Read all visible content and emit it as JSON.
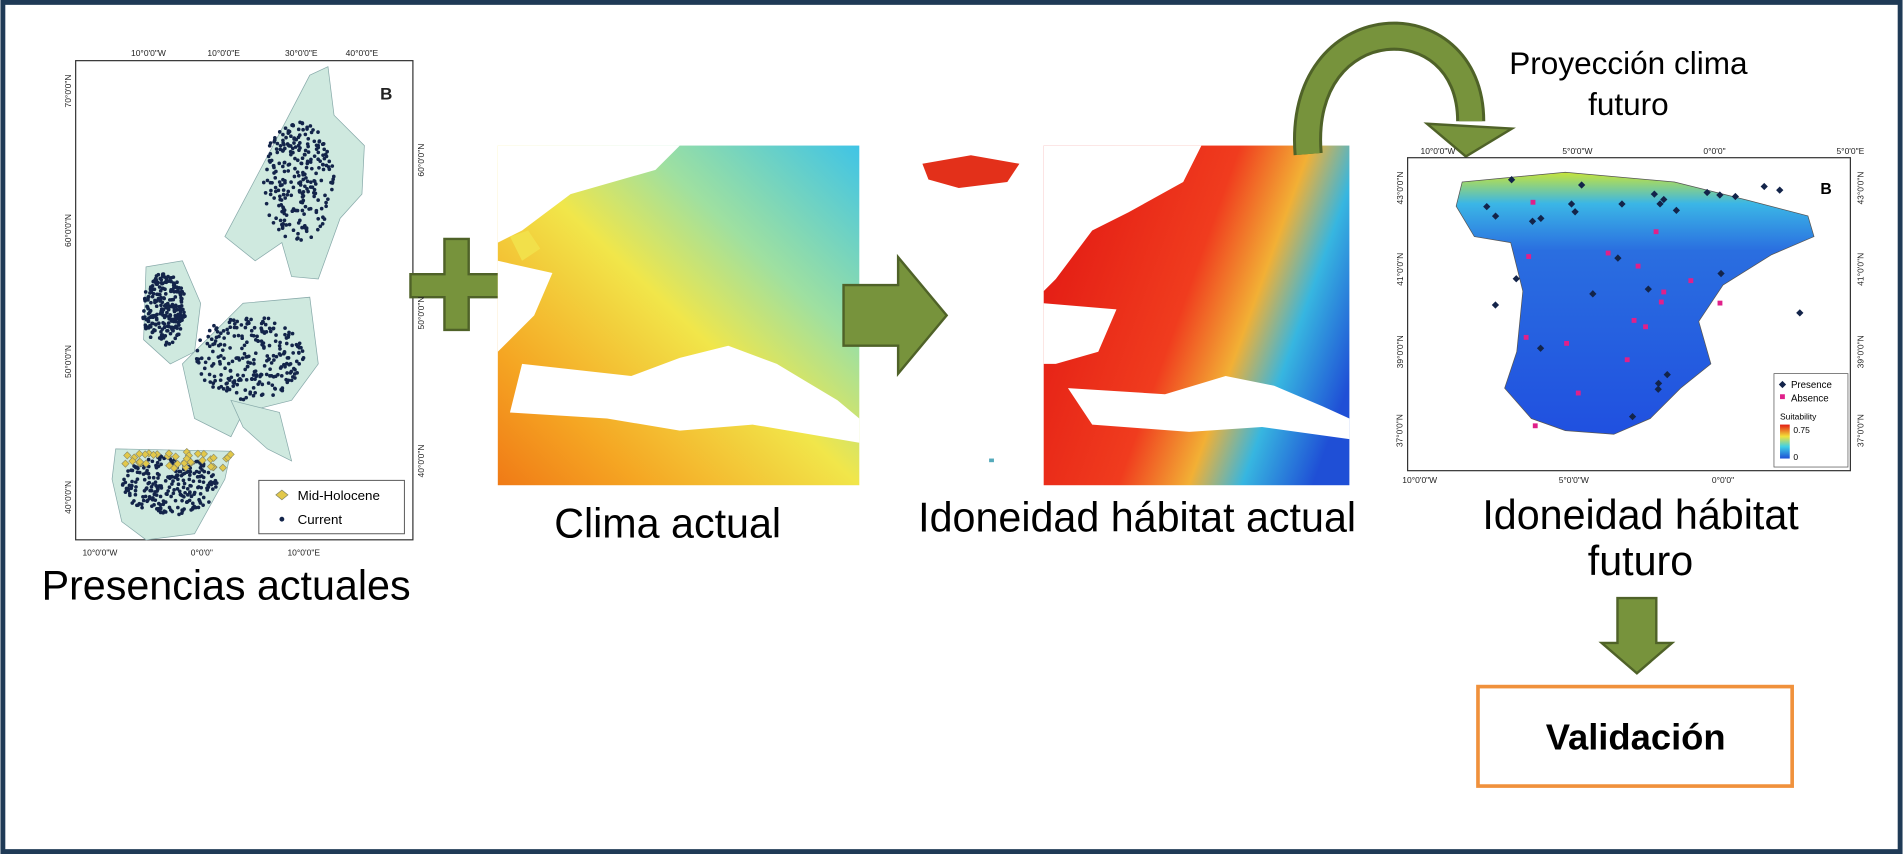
{
  "steps": [
    {
      "label": "Presencias actuales"
    },
    {
      "label": "Clima actual"
    },
    {
      "label": "Idoneidad hábitat actual"
    },
    {
      "label_lines": [
        "Idoneidad hábitat",
        "futuro"
      ]
    }
  ],
  "projection": {
    "label_lines": [
      "Proyección clima",
      "futuro"
    ]
  },
  "validation": {
    "label": "Validación"
  },
  "map_presencias": {
    "panel": "B",
    "top_ticks": [
      "10°0'0\"W",
      "10°0'0\"E",
      "30°0'0\"E",
      "40°0'0\"E"
    ],
    "left_ticks": [
      "70°0'0\"N",
      "60°0'0\"N",
      "50°0'0\"N",
      "40°0'0\"N"
    ],
    "right_ticks": [
      "60°0'0\"N",
      "50°0'0\"N",
      "40°0'0\"N"
    ],
    "bottom_ticks": [
      "10°0'0\"W",
      "0°0'0\"",
      "10°0'0\"E"
    ],
    "legend": [
      "Mid-Holocene",
      "Current"
    ]
  },
  "map_futuro": {
    "panel": "B",
    "top_ticks": [
      "10°0'0\"W",
      "5°0'0\"W",
      "0°0'0\"",
      "5°0'0\"E"
    ],
    "left_ticks": [
      "43°0'0\"N",
      "41°0'0\"N",
      "39°0'0\"N",
      "37°0'0\"N"
    ],
    "right_ticks": [
      "43°0'0\"N",
      "41°0'0\"N",
      "39°0'0\"N",
      "37°0'0\"N"
    ],
    "bottom_ticks": [
      "10°0'0\"W",
      "5°0'0\"W",
      "0°0'0\""
    ],
    "legend": [
      "Presence",
      "Absence"
    ],
    "scale_title": "Suitability",
    "scale_max": "0.75",
    "scale_min": "0"
  }
}
